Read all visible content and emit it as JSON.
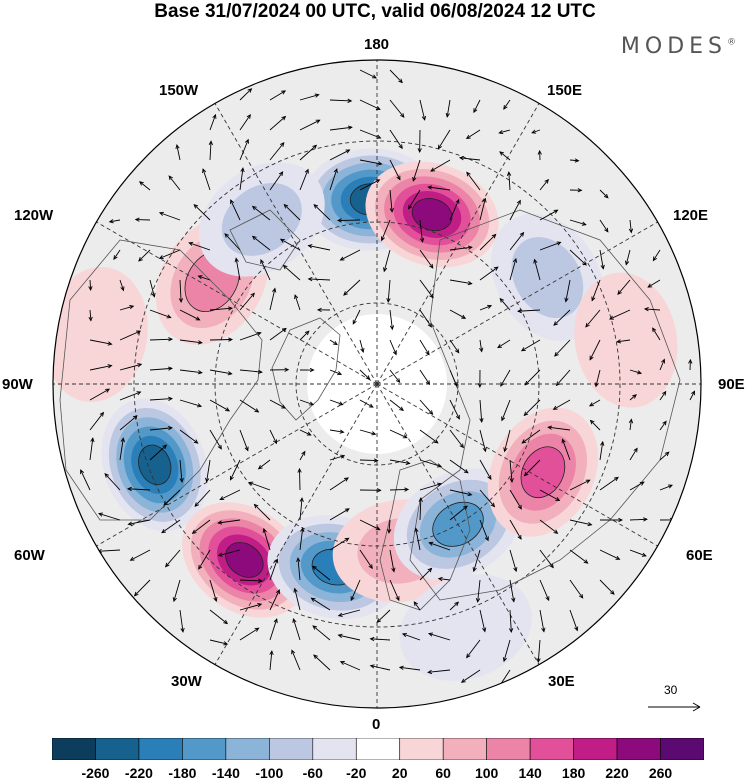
{
  "title": "Base 31/07/2024 00 UTC, valid 06/08/2024 12 UTC",
  "brand": "MODES",
  "brand_mark": "®",
  "longitude_labels": [
    {
      "key": "n180",
      "text": "180"
    },
    {
      "key": "w150",
      "text": "150W"
    },
    {
      "key": "e150",
      "text": "150E"
    },
    {
      "key": "w120",
      "text": "120W"
    },
    {
      "key": "e120",
      "text": "120E"
    },
    {
      "key": "w90",
      "text": "90W"
    },
    {
      "key": "e90",
      "text": "90E"
    },
    {
      "key": "w60",
      "text": "60W"
    },
    {
      "key": "e60",
      "text": "60E"
    },
    {
      "key": "w30",
      "text": "30W"
    },
    {
      "key": "e30",
      "text": "30E"
    },
    {
      "key": "s0",
      "text": "0"
    }
  ],
  "reference_vector": "30",
  "colorbar": {
    "ticks": [
      "-260",
      "-220",
      "-180",
      "-140",
      "-100",
      "-60",
      "-20",
      "20",
      "60",
      "100",
      "140",
      "180",
      "220",
      "260"
    ],
    "colors": [
      "#0d3d5c",
      "#17618f",
      "#2b7fb8",
      "#5299c9",
      "#8bb4d8",
      "#bcc8e2",
      "#e3e4f0",
      "#ffffff",
      "#f8d6d8",
      "#f2b0bc",
      "#ec84a8",
      "#e2509a",
      "#c01d87",
      "#8c0a7c",
      "#5a0a70"
    ]
  },
  "anomalies": [
    {
      "lon": -178,
      "r": 0.57,
      "value": -240
    },
    {
      "lon": 162,
      "r": 0.55,
      "value": 230
    },
    {
      "lon": -122,
      "r": 0.6,
      "value": 130
    },
    {
      "lon": -145,
      "r": 0.62,
      "value": -60
    },
    {
      "lon": -70,
      "r": 0.73,
      "value": -240
    },
    {
      "lon": -37,
      "r": 0.68,
      "value": 250
    },
    {
      "lon": -13,
      "r": 0.58,
      "value": -210
    },
    {
      "lon": 8,
      "r": 0.52,
      "value": 90
    },
    {
      "lon": 30,
      "r": 0.5,
      "value": -150
    },
    {
      "lon": 62,
      "r": 0.58,
      "value": 140
    },
    {
      "lon": 122,
      "r": 0.62,
      "value": -80
    },
    {
      "lon": 100,
      "r": 0.78,
      "value": 40
    },
    {
      "lon": -100,
      "r": 0.88,
      "value": 40
    },
    {
      "lon": 20,
      "r": 0.8,
      "value": -50
    }
  ]
}
